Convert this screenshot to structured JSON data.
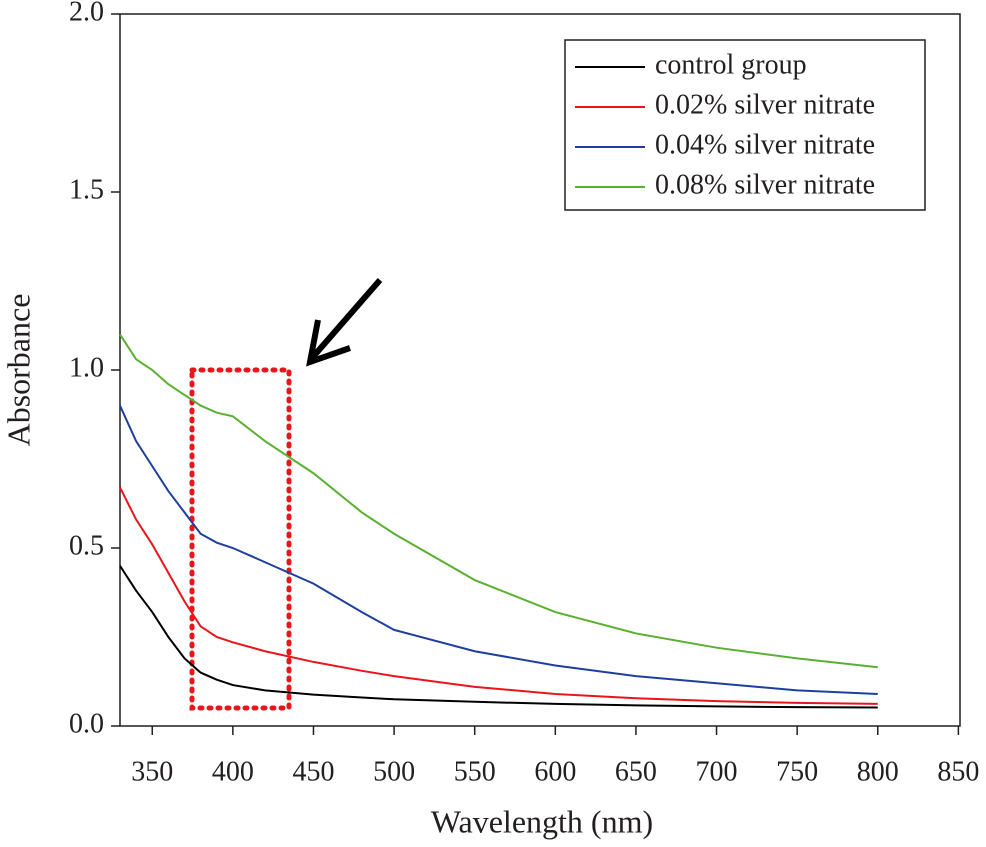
{
  "chart_data": {
    "type": "line",
    "xlabel": "Wavelength (nm)",
    "ylabel": "Absorbance",
    "x": [
      330,
      340,
      350,
      360,
      370,
      380,
      390,
      400,
      420,
      450,
      480,
      500,
      550,
      600,
      650,
      700,
      750,
      800
    ],
    "series": [
      {
        "name": "control group",
        "color": "#000000",
        "values": [
          0.45,
          0.38,
          0.32,
          0.25,
          0.19,
          0.15,
          0.13,
          0.115,
          0.1,
          0.088,
          0.08,
          0.075,
          0.068,
          0.062,
          0.058,
          0.055,
          0.053,
          0.052
        ]
      },
      {
        "name": "0.02% silver nitrate",
        "color": "#e8161b",
        "values": [
          0.67,
          0.58,
          0.51,
          0.43,
          0.35,
          0.28,
          0.25,
          0.235,
          0.21,
          0.18,
          0.155,
          0.14,
          0.11,
          0.09,
          0.078,
          0.07,
          0.065,
          0.062
        ]
      },
      {
        "name": "0.04% silver nitrate",
        "color": "#1f3f9e",
        "values": [
          0.9,
          0.8,
          0.73,
          0.66,
          0.6,
          0.54,
          0.515,
          0.5,
          0.46,
          0.4,
          0.32,
          0.27,
          0.21,
          0.17,
          0.14,
          0.12,
          0.1,
          0.09
        ]
      },
      {
        "name": "0.08% silver nitrate",
        "color": "#5ab031",
        "values": [
          1.1,
          1.03,
          1.0,
          0.96,
          0.93,
          0.9,
          0.88,
          0.87,
          0.8,
          0.71,
          0.6,
          0.54,
          0.41,
          0.32,
          0.26,
          0.22,
          0.19,
          0.165
        ]
      }
    ],
    "xlim": [
      330,
      851
    ],
    "ylim": [
      0,
      2
    ],
    "xticks": [
      350,
      400,
      450,
      500,
      550,
      600,
      650,
      700,
      750,
      800,
      850
    ],
    "yticks": [
      {
        "value": 0,
        "label": "0.0"
      },
      0.5,
      {
        "value": 1,
        "label": "1.0"
      },
      1.5,
      {
        "value": 2,
        "label": "2.0"
      }
    ],
    "legend": "upper right"
  }
}
